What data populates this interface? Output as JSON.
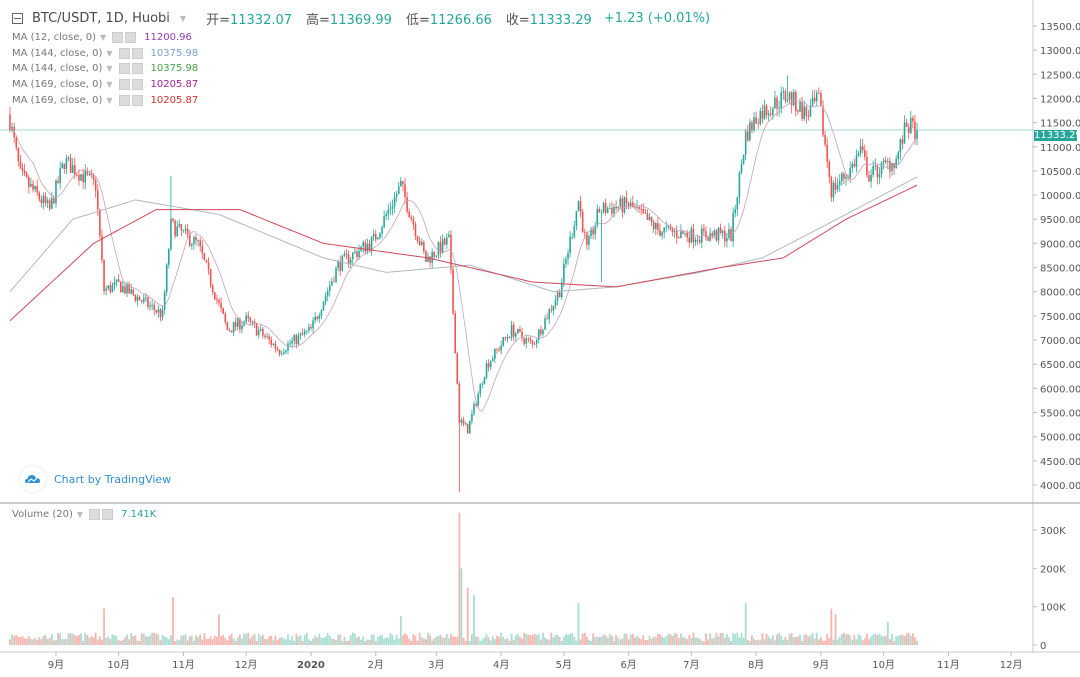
{
  "header": {
    "symbol": "BTC/USDT, 1D, Huobi",
    "open_label": "开=",
    "open": "11332.07",
    "high_label": "高=",
    "high": "11369.99",
    "low_label": "低=",
    "low": "11266.66",
    "close_label": "收=",
    "close": "11333.29",
    "change": "+1.23 (+0.01%)"
  },
  "indicators": [
    {
      "label": "MA (12, close, 0)",
      "value": "11200.96",
      "color": "#8e3fb0"
    },
    {
      "label": "MA (144, close, 0)",
      "value": "10375.98",
      "color": "#7aa3d0"
    },
    {
      "label": "MA (144, close, 0)",
      "value": "10375.98",
      "color": "#43a047"
    },
    {
      "label": "MA (169, close, 0)",
      "value": "10205.87",
      "color": "#a0208e"
    },
    {
      "label": "MA (169, close, 0)",
      "value": "10205.87",
      "color": "#d32f2f"
    }
  ],
  "volume_indicator": {
    "label": "Volume (20)",
    "value": "7.141K"
  },
  "branding": {
    "text": "Chart by TradingView"
  },
  "last_price_tag": "11333.29",
  "chart_data": {
    "type": "candlestick",
    "start_date": "2019-08-10",
    "x_unit": "days since start",
    "colors": {
      "up": "#26a69a",
      "down": "#ef5350",
      "ma12": "#c8a0b8",
      "ma144": "#b0b8c0",
      "ma169": "#d0485a",
      "last_line": "#9fd8d0"
    },
    "close_keypoints": [
      [
        0,
        11550
      ],
      [
        5,
        10400
      ],
      [
        19,
        9690
      ],
      [
        26,
        10700
      ],
      [
        41,
        10200
      ],
      [
        45,
        8030
      ],
      [
        52,
        8140
      ],
      [
        73,
        7520
      ],
      [
        77,
        9380
      ],
      [
        90,
        8970
      ],
      [
        104,
        7210
      ],
      [
        113,
        7410
      ],
      [
        129,
        6790
      ],
      [
        144,
        7210
      ],
      [
        157,
        8550
      ],
      [
        174,
        9070
      ],
      [
        187,
        10200
      ],
      [
        199,
        8650
      ],
      [
        210,
        9070
      ],
      [
        215,
        5350
      ],
      [
        219,
        5140
      ],
      [
        228,
        6480
      ],
      [
        240,
        7210
      ],
      [
        250,
        6900
      ],
      [
        263,
        8030
      ],
      [
        272,
        9890
      ],
      [
        276,
        8860
      ],
      [
        282,
        9690
      ],
      [
        296,
        9800
      ],
      [
        310,
        9280
      ],
      [
        326,
        9170
      ],
      [
        345,
        9170
      ],
      [
        352,
        11240
      ],
      [
        358,
        11660
      ],
      [
        372,
        12070
      ],
      [
        381,
        11660
      ],
      [
        387,
        11970
      ],
      [
        393,
        10100
      ],
      [
        402,
        10520
      ],
      [
        407,
        10930
      ],
      [
        411,
        10410
      ],
      [
        424,
        10730
      ],
      [
        429,
        11450
      ],
      [
        434,
        11333
      ]
    ],
    "wick_extremes": [
      {
        "day": 215,
        "low": 3850
      },
      {
        "day": 77,
        "high": 10400
      },
      {
        "day": 372,
        "high": 12480
      },
      {
        "day": 283,
        "low": 8200
      }
    ],
    "ma144_keypoints": [
      [
        0,
        8000
      ],
      [
        30,
        9500
      ],
      [
        60,
        9900
      ],
      [
        100,
        9600
      ],
      [
        150,
        8700
      ],
      [
        180,
        8400
      ],
      [
        220,
        8550
      ],
      [
        260,
        8000
      ],
      [
        290,
        8100
      ],
      [
        330,
        8400
      ],
      [
        360,
        8700
      ],
      [
        400,
        9600
      ],
      [
        434,
        10376
      ]
    ],
    "ma169_keypoints": [
      [
        0,
        7400
      ],
      [
        40,
        9000
      ],
      [
        70,
        9700
      ],
      [
        110,
        9700
      ],
      [
        150,
        9000
      ],
      [
        200,
        8700
      ],
      [
        250,
        8200
      ],
      [
        290,
        8100
      ],
      [
        340,
        8500
      ],
      [
        370,
        8700
      ],
      [
        400,
        9500
      ],
      [
        434,
        10206
      ]
    ],
    "volume_spikes_k": [
      [
        215,
        345
      ],
      [
        216,
        200
      ],
      [
        219,
        150
      ],
      [
        222,
        130
      ],
      [
        78,
        125
      ],
      [
        272,
        110
      ],
      [
        352,
        110
      ],
      [
        393,
        95
      ],
      [
        395,
        80
      ],
      [
        45,
        95
      ],
      [
        100,
        80
      ],
      [
        187,
        75
      ],
      [
        420,
        60
      ]
    ],
    "volume_base_k": 25,
    "price_axis": {
      "min": 3800,
      "max": 13700,
      "ticks": [
        "4000.00",
        "4500.00",
        "5000.00",
        "5500.00",
        "6000.00",
        "6500.00",
        "7000.00",
        "7500.00",
        "8000.00",
        "8500.00",
        "9000.00",
        "9500.00",
        "10000.00",
        "10500.00",
        "11000.00",
        "11500.00",
        "12000.00",
        "12500.00",
        "13000.00",
        "13500.00"
      ]
    },
    "volume_axis": {
      "ticks": [
        {
          "label": "0",
          "value": 0
        },
        {
          "label": "100K",
          "value": 100
        },
        {
          "label": "200K",
          "value": 200
        },
        {
          "label": "300K",
          "value": 300
        }
      ]
    },
    "x_ticks": [
      {
        "label": "9月",
        "day": 22
      },
      {
        "label": "10月",
        "day": 52
      },
      {
        "label": "11月",
        "day": 83
      },
      {
        "label": "12月",
        "day": 113
      },
      {
        "label": "2020",
        "day": 144
      },
      {
        "label": "2月",
        "day": 175
      },
      {
        "label": "3月",
        "day": 204
      },
      {
        "label": "4月",
        "day": 235
      },
      {
        "label": "5月",
        "day": 265
      },
      {
        "label": "6月",
        "day": 296
      },
      {
        "label": "7月",
        "day": 326
      },
      {
        "label": "8月",
        "day": 357
      },
      {
        "label": "9月",
        "day": 388
      },
      {
        "label": "10月",
        "day": 418
      },
      {
        "label": "11月",
        "day": 449
      },
      {
        "label": "12月",
        "day": 479
      }
    ]
  }
}
